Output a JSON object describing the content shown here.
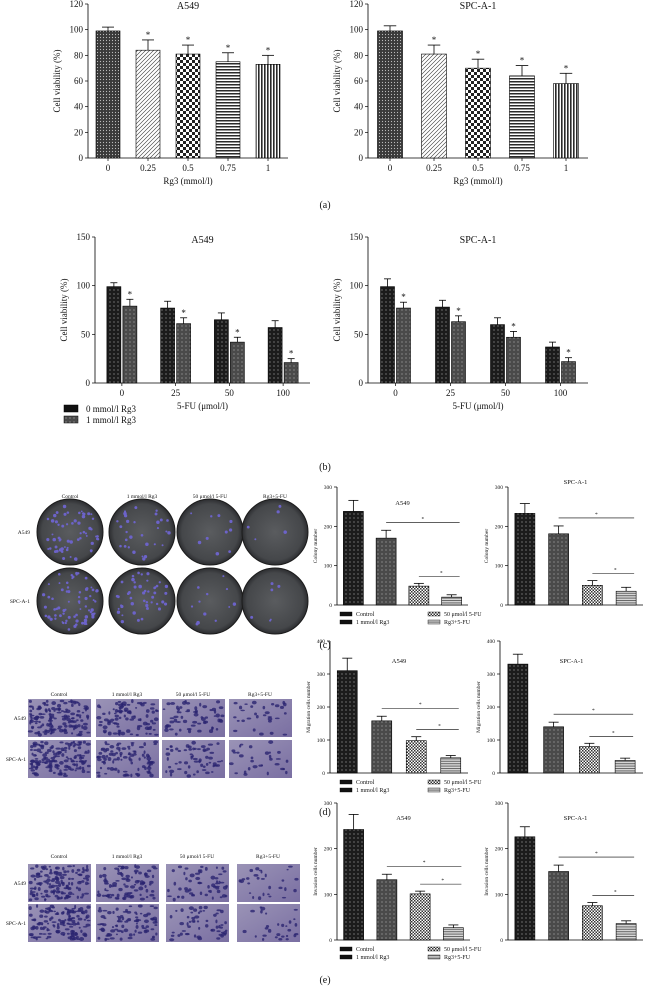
{
  "panel_labels": {
    "a": "(a)",
    "b": "(b)",
    "c": "(c)",
    "d": "(d)",
    "e": "(e)"
  },
  "photo_panels": {
    "c": {
      "columns": [
        "Control",
        "1 mmol/l Rg3",
        "50 μmol/l 5-FU",
        "Rg3+5-FU"
      ],
      "rows": [
        "A549",
        "SPC-A-1"
      ]
    },
    "d": {
      "columns": [
        "Control",
        "1 mmol/l Rg3",
        "50 μmol/l 5-FU",
        "Rg3+5-FU"
      ],
      "rows": [
        "A549",
        "SPC-A-1"
      ]
    },
    "e": {
      "columns": [
        "Control",
        "1 mmol/l Rg3",
        "50 μmol/l 5-FU",
        "Rg3+5-FU"
      ],
      "rows": [
        "A549",
        "SPC-A-1"
      ]
    }
  },
  "legends": {
    "b": [
      "0 mmol/l Rg3",
      "1 mmol/l Rg3"
    ],
    "cde": [
      "Control",
      "1 mmol/l Rg3",
      "50 μmol/l 5-FU",
      "Rg3+5-FU"
    ]
  },
  "significance_mark": "*",
  "chart_data": [
    {
      "id": "a-left",
      "type": "bar",
      "title": "A549",
      "xlabel": "Rg3 (mmol/l)",
      "ylabel": "Cell viability (%)",
      "categories": [
        "0",
        "0.25",
        "0.5",
        "0.75",
        "1"
      ],
      "values": [
        99,
        84,
        81,
        75,
        73
      ],
      "errors": [
        3,
        8,
        7,
        7,
        7
      ],
      "sig": [
        false,
        true,
        true,
        true,
        true
      ],
      "ylim": [
        0,
        120
      ],
      "yticks": [
        0,
        20,
        40,
        60,
        80,
        100,
        120
      ]
    },
    {
      "id": "a-right",
      "type": "bar",
      "title": "SPC-A-1",
      "xlabel": "Rg3 (mmol/l)",
      "ylabel": "Cell viability (%)",
      "categories": [
        "0",
        "0.25",
        "0.5",
        "0.75",
        "1"
      ],
      "values": [
        99,
        81,
        70,
        64,
        58
      ],
      "errors": [
        4,
        7,
        7,
        8,
        8
      ],
      "sig": [
        false,
        true,
        true,
        true,
        true
      ],
      "ylim": [
        0,
        120
      ],
      "yticks": [
        0,
        20,
        40,
        60,
        80,
        100,
        120
      ]
    },
    {
      "id": "b-left",
      "type": "bar",
      "title": "A549",
      "xlabel": "5-FU (μmol/l)",
      "ylabel": "Cell viability (%)",
      "categories": [
        "0",
        "25",
        "50",
        "100"
      ],
      "series": [
        {
          "name": "0 mmol/l Rg3",
          "values": [
            99,
            77,
            65,
            57
          ],
          "errors": [
            4,
            7,
            7,
            7
          ]
        },
        {
          "name": "1 mmol/l Rg3",
          "values": [
            79,
            61,
            42,
            21
          ],
          "errors": [
            7,
            6,
            5,
            4
          ]
        }
      ],
      "sig": [
        true,
        true,
        true,
        true
      ],
      "ylim": [
        0,
        150
      ],
      "yticks": [
        0,
        50,
        100,
        150
      ]
    },
    {
      "id": "b-right",
      "type": "bar",
      "title": "SPC-A-1",
      "xlabel": "5-FU (μmol/l)",
      "ylabel": "Cell viability (%)",
      "categories": [
        "0",
        "25",
        "50",
        "100"
      ],
      "series": [
        {
          "name": "0 mmol/l Rg3",
          "values": [
            99,
            78,
            60,
            37
          ],
          "errors": [
            8,
            7,
            7,
            5
          ]
        },
        {
          "name": "1 mmol/l Rg3",
          "values": [
            77,
            63,
            47,
            22
          ],
          "errors": [
            6,
            6,
            6,
            4
          ]
        }
      ],
      "sig": [
        true,
        true,
        true,
        true
      ],
      "ylim": [
        0,
        150
      ],
      "yticks": [
        0,
        50,
        100,
        150
      ]
    },
    {
      "id": "c-left",
      "type": "bar",
      "title": "A549",
      "ylabel": "Colony number",
      "categories": [
        "Control",
        "1 mmol/l Rg3",
        "50 μmol/l 5-FU",
        "Rg3+5-FU"
      ],
      "values": [
        238,
        170,
        48,
        20
      ],
      "errors": [
        28,
        20,
        7,
        6
      ],
      "ylim": [
        0,
        300
      ],
      "yticks": [
        0,
        100,
        200,
        300
      ]
    },
    {
      "id": "c-right",
      "type": "bar",
      "title": "SPC-A-1",
      "ylabel": "Colony number",
      "categories": [
        "Control",
        "1 mmol/l Rg3",
        "50 μmol/l 5-FU",
        "Rg3+5-FU"
      ],
      "values": [
        233,
        181,
        50,
        35
      ],
      "errors": [
        25,
        20,
        12,
        10
      ],
      "ylim": [
        0,
        300
      ],
      "yticks": [
        0,
        100,
        200,
        300
      ]
    },
    {
      "id": "d-left",
      "type": "bar",
      "title": "A549",
      "ylabel": "Migration cells number",
      "categories": [
        "Control",
        "1 mmol/l Rg3",
        "50 μmol/l 5-FU",
        "Rg3+5-FU"
      ],
      "values": [
        310,
        158,
        98,
        46
      ],
      "errors": [
        38,
        14,
        12,
        7
      ],
      "ylim": [
        0,
        400
      ],
      "yticks": [
        0,
        100,
        200,
        300,
        400
      ]
    },
    {
      "id": "d-right",
      "type": "bar",
      "title": "SPC-A-1",
      "ylabel": "Migration cells number",
      "categories": [
        "Control",
        "1 mmol/l Rg3",
        "50 μmol/l 5-FU",
        "Rg3+5-FU"
      ],
      "values": [
        330,
        140,
        80,
        38
      ],
      "errors": [
        30,
        14,
        10,
        7
      ],
      "ylim": [
        0,
        400
      ],
      "yticks": [
        0,
        100,
        200,
        300,
        400
      ]
    },
    {
      "id": "e-left",
      "type": "bar",
      "title": "A549",
      "ylabel": "Invasion cells number",
      "categories": [
        "Control",
        "1 mmol/l Rg3",
        "50 μmol/l 5-FU",
        "Rg3+5-FU"
      ],
      "values": [
        242,
        132,
        101,
        27
      ],
      "errors": [
        33,
        12,
        6,
        6
      ],
      "ylim": [
        0,
        300
      ],
      "yticks": [
        0,
        100,
        200,
        300
      ]
    },
    {
      "id": "e-right",
      "type": "bar",
      "title": "SPC-A-1",
      "ylabel": "Invasion cells number",
      "categories": [
        "Control",
        "1 mmol/l Rg3",
        "50 μmol/l 5-FU",
        "Rg3+5-FU"
      ],
      "values": [
        226,
        150,
        75,
        36
      ],
      "errors": [
        22,
        14,
        7,
        6
      ],
      "ylim": [
        0,
        300
      ],
      "yticks": [
        0,
        100,
        200,
        300
      ]
    }
  ]
}
